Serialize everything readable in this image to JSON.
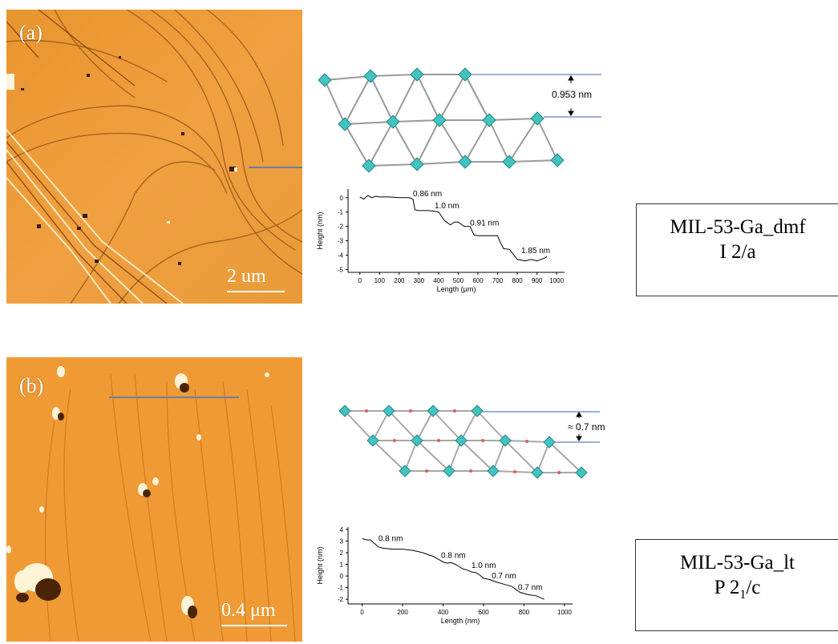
{
  "panel_a": {
    "label": "(a)",
    "scale_bar": "2 um",
    "spacing": "0.953 nm",
    "profile": {
      "ylabel": "Height (nm)",
      "xlabel": "Length (μm)",
      "yticks": [
        "0",
        "-1",
        "-2",
        "-3",
        "-4",
        "-5"
      ],
      "xticks": [
        "0",
        "100",
        "200",
        "300",
        "400",
        "500",
        "600",
        "700",
        "800",
        "900",
        "1000"
      ],
      "annotations": [
        "0.86 nm",
        "1.0 nm",
        "0.91 nm",
        "1.85 nm"
      ]
    },
    "box": {
      "name": "MIL-53-Ga_dmf",
      "group": "I 2/a"
    }
  },
  "panel_b": {
    "label": "(b)",
    "scale_bar": "0.4 μm",
    "spacing": "≈ 0.7 nm",
    "profile": {
      "ylabel": "Height (nm)",
      "xlabel": "Length (nm)",
      "yticks": [
        "4",
        "3",
        "2",
        "1",
        "0",
        "-1",
        "-2"
      ],
      "xticks": [
        "0",
        "200",
        "400",
        "600",
        "800",
        "1000"
      ],
      "annotations": [
        "0.8 nm",
        "0.8 nm",
        "1.0 nm",
        "0.7 nm",
        "0.7 nm"
      ]
    },
    "box": {
      "name": "MIL-53-Ga_lt",
      "group_prefix": "P 2",
      "group_sub": "1",
      "group_suffix": "/c"
    }
  },
  "chart_data": [
    {
      "type": "line",
      "xlabel": "Length (μm)",
      "ylabel": "Height (nm)",
      "xlim": [
        -60,
        1040
      ],
      "ylim": [
        -5.2,
        0.6
      ],
      "series": [
        {
          "x": [
            0,
            20,
            40,
            60,
            80,
            100,
            150,
            200,
            250,
            270,
            280,
            300,
            350,
            380,
            400,
            430,
            460,
            480,
            500,
            530,
            560,
            580,
            600,
            650,
            700,
            710,
            730,
            760,
            800,
            840,
            870,
            900,
            940,
            950
          ],
          "y": [
            0.05,
            -0.1,
            0.15,
            0.0,
            0.1,
            0.05,
            0.05,
            0.0,
            0.0,
            -0.1,
            -0.85,
            -0.9,
            -0.9,
            -0.95,
            -1.0,
            -1.6,
            -1.9,
            -1.7,
            -1.7,
            -2.0,
            -2.0,
            -2.6,
            -2.65,
            -2.65,
            -2.65,
            -3.0,
            -3.55,
            -3.6,
            -4.3,
            -4.4,
            -4.3,
            -4.4,
            -4.2,
            -4.1
          ]
        }
      ]
    },
    {
      "type": "line",
      "xlabel": "Length (nm)",
      "ylabel": "Height (nm)",
      "xlim": [
        -70,
        1040
      ],
      "ylim": [
        -2.4,
        4.2
      ],
      "series": [
        {
          "x": [
            0,
            20,
            40,
            60,
            80,
            100,
            150,
            200,
            250,
            300,
            330,
            350,
            380,
            400,
            420,
            440,
            460,
            480,
            500,
            520,
            540,
            560,
            580,
            600,
            630,
            660,
            700,
            740,
            780,
            820,
            860,
            900
          ],
          "y": [
            3.2,
            3.1,
            3.1,
            2.8,
            2.5,
            2.4,
            2.3,
            2.3,
            2.2,
            2.0,
            1.8,
            1.7,
            1.4,
            1.2,
            1.1,
            1.15,
            1.0,
            0.8,
            0.6,
            0.5,
            0.35,
            0.3,
            0.1,
            -0.2,
            -0.3,
            -0.5,
            -0.7,
            -0.9,
            -1.4,
            -1.6,
            -1.7,
            -2.0
          ]
        }
      ]
    }
  ]
}
